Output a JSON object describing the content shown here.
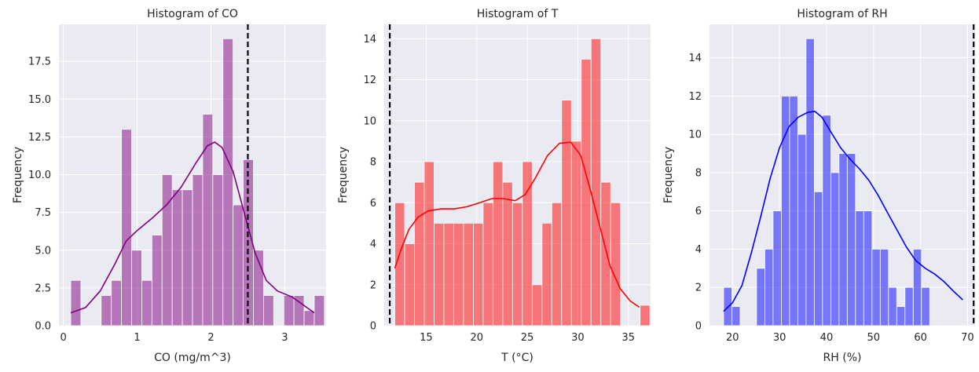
{
  "chart_data": [
    {
      "type": "bar",
      "title": "Histogram of CO",
      "xlabel": "CO (mg/m^3)",
      "ylabel": "Frequency",
      "xlim": [
        -0.06,
        3.56
      ],
      "ylim": [
        0,
        19.95
      ],
      "xticks": [
        0,
        1,
        2,
        3
      ],
      "xtick_labels": [
        "0",
        "1",
        "2",
        "3"
      ],
      "yticks": [
        0,
        2.5,
        5,
        7.5,
        10,
        12.5,
        15,
        17.5
      ],
      "ytick_labels": [
        "0.0",
        "2.5",
        "5.0",
        "7.5",
        "10.0",
        "12.5",
        "15.0",
        "17.5"
      ],
      "bin_start": 0.1,
      "bin_width": 0.1375,
      "counts": [
        3,
        0,
        0,
        2,
        3,
        13,
        5,
        3,
        6,
        10,
        9,
        9,
        10,
        14,
        10,
        19,
        8,
        11,
        5,
        2,
        0,
        2,
        2,
        1,
        2
      ],
      "color": "#800080",
      "kde_color": "#800080",
      "kde": [
        [
          0.1,
          0.85
        ],
        [
          0.3,
          1.2
        ],
        [
          0.5,
          2.3
        ],
        [
          0.7,
          4.1
        ],
        [
          0.85,
          5.6
        ],
        [
          1.0,
          6.3
        ],
        [
          1.2,
          7.1
        ],
        [
          1.4,
          8.0
        ],
        [
          1.6,
          9.2
        ],
        [
          1.8,
          10.8
        ],
        [
          1.95,
          11.9
        ],
        [
          2.05,
          12.15
        ],
        [
          2.15,
          11.8
        ],
        [
          2.3,
          10.2
        ],
        [
          2.45,
          7.5
        ],
        [
          2.6,
          4.8
        ],
        [
          2.75,
          3.0
        ],
        [
          2.9,
          2.3
        ],
        [
          3.1,
          1.9
        ],
        [
          3.3,
          1.2
        ],
        [
          3.4,
          0.85
        ]
      ],
      "vline": 2.5
    },
    {
      "type": "bar",
      "title": "Histogram of T",
      "xlabel": "T (°C)",
      "ylabel": "Frequency",
      "xlim": [
        10.85,
        37.2
      ],
      "ylim": [
        0,
        14.7
      ],
      "xticks": [
        15,
        20,
        25,
        30,
        35
      ],
      "xtick_labels": [
        "15",
        "20",
        "25",
        "30",
        "35"
      ],
      "yticks": [
        0,
        2,
        4,
        6,
        8,
        10,
        12,
        14
      ],
      "ytick_labels": [
        "0",
        "2",
        "4",
        "6",
        "8",
        "10",
        "12",
        "14"
      ],
      "bin_start": 11.9,
      "bin_width": 0.9706,
      "counts": [
        6,
        4,
        7,
        8,
        5,
        5,
        5,
        5,
        5,
        6,
        8,
        7,
        6,
        8,
        2,
        5,
        6,
        11,
        9,
        13,
        14,
        7,
        6,
        0,
        0,
        1
      ],
      "color": "#ff0000",
      "kde_color": "#ff0000",
      "kde": [
        [
          11.9,
          2.8
        ],
        [
          12.5,
          3.7
        ],
        [
          13.3,
          4.7
        ],
        [
          14.2,
          5.3
        ],
        [
          15.2,
          5.6
        ],
        [
          16.5,
          5.7
        ],
        [
          17.8,
          5.7
        ],
        [
          19.0,
          5.8
        ],
        [
          20.3,
          6.0
        ],
        [
          21.5,
          6.2
        ],
        [
          22.6,
          6.2
        ],
        [
          23.8,
          6.1
        ],
        [
          24.8,
          6.4
        ],
        [
          25.8,
          7.2
        ],
        [
          27.0,
          8.3
        ],
        [
          28.2,
          8.9
        ],
        [
          29.3,
          8.95
        ],
        [
          30.3,
          8.3
        ],
        [
          31.2,
          6.7
        ],
        [
          32.2,
          4.8
        ],
        [
          33.2,
          2.9
        ],
        [
          34.2,
          1.8
        ],
        [
          35.2,
          1.2
        ],
        [
          36.1,
          0.9
        ]
      ],
      "vline": 11.4
    },
    {
      "type": "bar",
      "title": "Histogram of RH",
      "xlabel": "RH (%)",
      "ylabel": "Frequency",
      "xlim": [
        15.1,
        71.6
      ],
      "ylim": [
        0,
        15.75
      ],
      "xticks": [
        20,
        30,
        40,
        50,
        60,
        70
      ],
      "xtick_labels": [
        "20",
        "30",
        "40",
        "50",
        "60",
        "70"
      ],
      "yticks": [
        0,
        2,
        4,
        6,
        8,
        10,
        12,
        14
      ],
      "ytick_labels": [
        "0",
        "2",
        "4",
        "6",
        "8",
        "10",
        "12",
        "14"
      ],
      "bin_start": 18.1,
      "bin_width": 1.754,
      "counts": [
        2,
        1,
        0,
        0,
        3,
        4,
        6,
        12,
        12,
        10,
        15,
        7,
        11,
        8,
        9,
        9,
        6,
        6,
        4,
        4,
        2,
        1,
        2,
        4,
        2
      ],
      "color": "#0000ff",
      "kde_color": "#0000ff",
      "kde": [
        [
          18.1,
          0.75
        ],
        [
          20.0,
          1.2
        ],
        [
          22.0,
          2.1
        ],
        [
          24.0,
          3.8
        ],
        [
          26.0,
          5.7
        ],
        [
          28.0,
          7.7
        ],
        [
          30.0,
          9.3
        ],
        [
          32.0,
          10.4
        ],
        [
          34.0,
          10.9
        ],
        [
          36.0,
          11.15
        ],
        [
          37.5,
          11.2
        ],
        [
          39.0,
          10.9
        ],
        [
          41.0,
          10.1
        ],
        [
          43.0,
          9.3
        ],
        [
          45.0,
          8.7
        ],
        [
          47.0,
          8.2
        ],
        [
          49.0,
          7.6
        ],
        [
          51.0,
          6.8
        ],
        [
          53.0,
          5.9
        ],
        [
          55.0,
          5.0
        ],
        [
          57.0,
          4.1
        ],
        [
          59.0,
          3.4
        ],
        [
          61.0,
          3.0
        ],
        [
          63.0,
          2.7
        ],
        [
          65.0,
          2.3
        ],
        [
          67.0,
          1.8
        ],
        [
          69.0,
          1.35
        ]
      ],
      "vline": 71.3
    }
  ]
}
